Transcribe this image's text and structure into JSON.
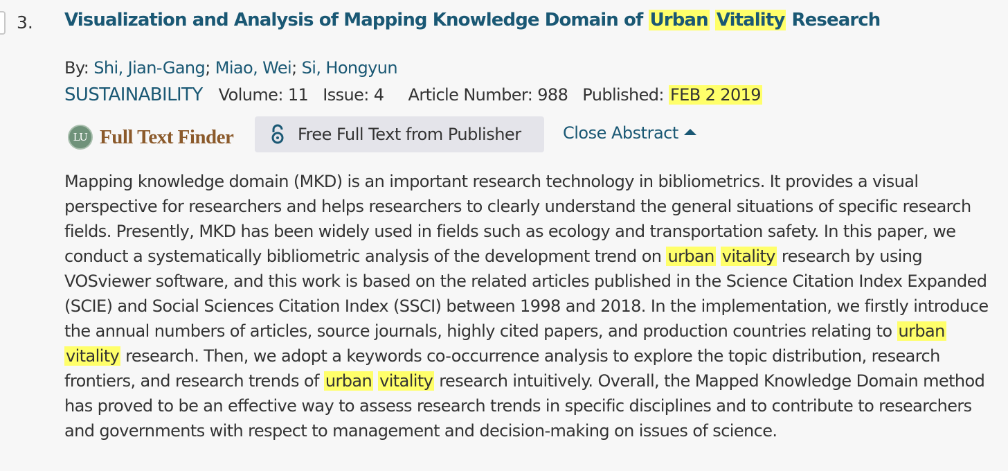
{
  "record": {
    "number": "3.",
    "title_parts": [
      "Visualization and Analysis of Mapping Knowledge Domain of ",
      "Urban",
      " ",
      "Vitality",
      " Research"
    ],
    "by_label": "By:",
    "authors": [
      "Shi, Jian-Gang",
      "Miao, Wei",
      "Si, Hongyun"
    ],
    "separator": ";",
    "journal": "SUSTAINABILITY",
    "volume": "Volume: 11",
    "issue": "Issue: 4",
    "article_number": "Article Number: 988",
    "published_label": "Published:",
    "published_date": "FEB 2 2019"
  },
  "actions": {
    "full_text_finder_badge": "LU",
    "full_text_finder_label": "Full Text Finder",
    "free_full_text_label": "Free Full Text from Publisher",
    "close_abstract_label": "Close Abstract"
  },
  "abstract": {
    "lines": [
      [
        "Mapping knowledge domain (MKD) is an important research technology in bibliometrics. It provides a visual"
      ],
      [
        "perspective for researchers and helps researchers to clearly understand the general situations of specific research"
      ],
      [
        "fields. Presently, MKD has been widely used in fields such as ecology and transportation safety. In this paper, we"
      ],
      [
        "conduct a systematically bibliometric analysis of the development trend on ",
        "urban",
        " ",
        "vitality",
        " research by using"
      ],
      [
        "VOSviewer software, and this work is based on the related articles published in the Science Citation Index Expanded"
      ],
      [
        "(SCIE) and Social Sciences Citation Index (SSCI) between 1998 and 2018. In the implementation, we firstly introduce"
      ],
      [
        "the annual numbers of articles, source journals, highly cited papers, and production countries relating to ",
        "urban"
      ],
      [
        "",
        "vitality",
        " research. Then, we adopt a keywords co-occurrence analysis to explore the topic distribution, research"
      ],
      [
        "frontiers, and research trends of ",
        "urban",
        " ",
        "vitality",
        " research intuitively. Overall, the Mapped Knowledge Domain method"
      ],
      [
        "has proved to be an effective way to assess research trends in specific disciplines and to contribute to researchers"
      ],
      [
        "and governments with respect to management and decision-making on issues of science."
      ]
    ]
  },
  "colors": {
    "link": "#1a5874",
    "highlight": "#ffff6a",
    "text": "#333333",
    "background": "#f7f7f7"
  }
}
